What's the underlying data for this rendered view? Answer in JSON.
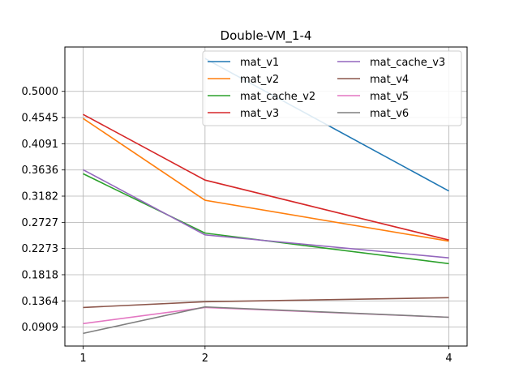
{
  "chart_data": {
    "type": "line",
    "title": "Double-VM_1-4",
    "xlabel": "",
    "ylabel": "",
    "x": [
      1,
      2,
      4
    ],
    "x_ticks": [
      "1",
      "2",
      "4"
    ],
    "y_ticks": [
      "0.0909",
      "0.1364",
      "0.1818",
      "0.2273",
      "0.2727",
      "0.3182",
      "0.3636",
      "0.4091",
      "0.4545",
      "0.5000"
    ],
    "ylim": [
      0.058,
      0.577
    ],
    "xlim": [
      0.85,
      4.15
    ],
    "grid": true,
    "legend_position": "top-right",
    "legend_columns": 2,
    "series": [
      {
        "name": "mat_v1",
        "color": "#1f77b4",
        "values": [
          null,
          0.557,
          0.327
        ]
      },
      {
        "name": "mat_v2",
        "color": "#ff7f0e",
        "values": [
          0.453,
          0.311,
          0.24
        ]
      },
      {
        "name": "mat_cache_v2",
        "color": "#2ca02c",
        "values": [
          0.357,
          0.254,
          0.201
        ]
      },
      {
        "name": "mat_v3",
        "color": "#d62728",
        "values": [
          0.46,
          0.346,
          0.242
        ]
      },
      {
        "name": "mat_cache_v3",
        "color": "#9467bd",
        "values": [
          0.364,
          0.251,
          0.211
        ]
      },
      {
        "name": "mat_v4",
        "color": "#8c564b",
        "values": [
          0.125,
          0.135,
          0.142
        ]
      },
      {
        "name": "mat_v5",
        "color": "#e377c2",
        "values": [
          0.097,
          0.125,
          0.108
        ]
      },
      {
        "name": "mat_v6",
        "color": "#7f7f7f",
        "values": [
          0.08,
          0.126,
          0.108
        ]
      }
    ]
  }
}
